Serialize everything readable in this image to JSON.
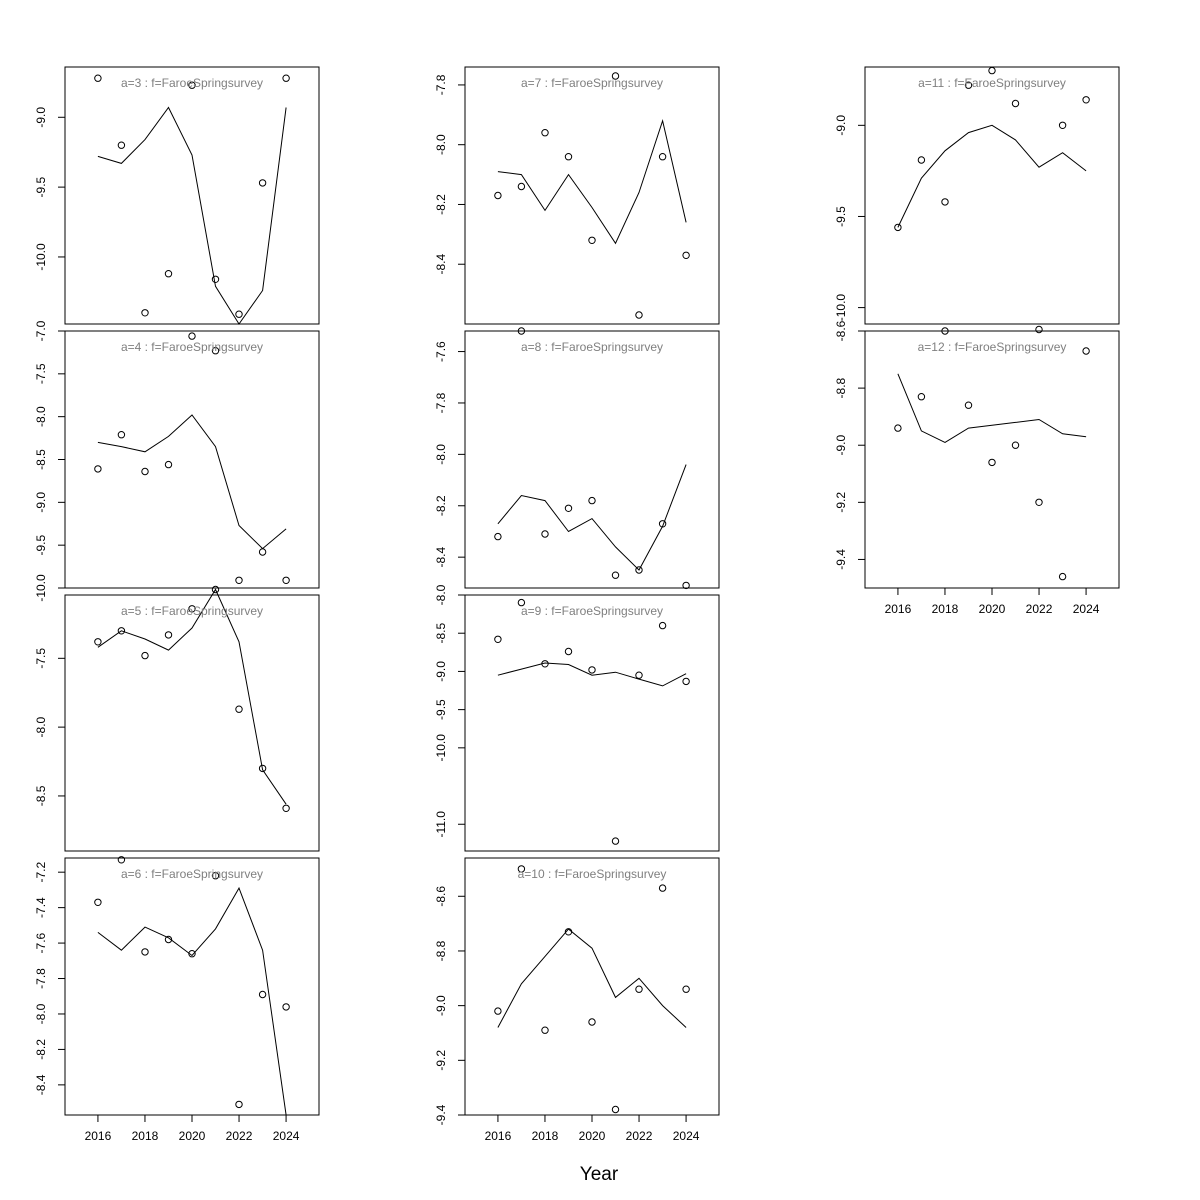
{
  "figure": {
    "xlabel": "Year"
  },
  "chart_data": [
    {
      "type": "scatter",
      "title": "a=3  :  f=FaroeSpringsurvey",
      "xlim": [
        2014.6,
        2025.4
      ],
      "ylim": [
        -10.48,
        -8.64
      ],
      "xticks": [],
      "yticks": [
        -9.0,
        -9.5,
        -10.0
      ],
      "x": [
        2016,
        2017,
        2018,
        2019,
        2020,
        2021,
        2022,
        2023,
        2024
      ],
      "observed": [
        -8.72,
        -9.2,
        -10.4,
        -10.12,
        -8.77,
        -10.16,
        -10.41,
        -9.47,
        -8.72
      ],
      "fitted": [
        -9.28,
        -9.33,
        -9.16,
        -8.93,
        -9.27,
        -10.21,
        -10.48,
        -10.24,
        -8.93
      ]
    },
    {
      "type": "scatter",
      "title": "a=4  :  f=FaroeSpringsurvey",
      "xlim": [
        2014.6,
        2025.4
      ],
      "ylim": [
        -10.0,
        -7.0
      ],
      "xticks": [],
      "yticks": [
        -7.0,
        -7.5,
        -8.0,
        -8.5,
        -9.0,
        -9.5,
        -10.0
      ],
      "x": [
        2016,
        2017,
        2018,
        2019,
        2020,
        2021,
        2022,
        2023,
        2024
      ],
      "observed": [
        -8.61,
        -8.21,
        -8.64,
        -8.56,
        -7.06,
        -7.23,
        -9.91,
        -9.58,
        -9.91
      ],
      "fitted": [
        -8.3,
        -8.35,
        -8.41,
        -8.23,
        -7.98,
        -8.35,
        -9.27,
        -9.54,
        -9.31
      ]
    },
    {
      "type": "scatter",
      "title": "a=5  :  f=FaroeSpringsurvey",
      "xlim": [
        2014.6,
        2025.4
      ],
      "ylim": [
        -8.9,
        -7.04
      ],
      "xticks": [],
      "yticks": [
        -7.5,
        -8.0,
        -8.5
      ],
      "x": [
        2016,
        2017,
        2018,
        2019,
        2020,
        2021,
        2022,
        2023,
        2024
      ],
      "observed": [
        -7.38,
        -7.3,
        -7.48,
        -7.33,
        -7.14,
        -7.0,
        -7.87,
        -8.3,
        -8.59
      ],
      "fitted": [
        -7.42,
        -7.3,
        -7.36,
        -7.44,
        -7.28,
        -7.0,
        -7.38,
        -8.31,
        -8.56
      ]
    },
    {
      "type": "scatter",
      "title": "a=6  :  f=FaroeSpringsurvey",
      "xlim": [
        2014.6,
        2025.4
      ],
      "ylim": [
        -8.57,
        -7.12
      ],
      "xticks": [
        2016,
        2018,
        2020,
        2022,
        2024
      ],
      "yticks": [
        -7.2,
        -7.4,
        -7.6,
        -7.8,
        -8.0,
        -8.2,
        -8.4
      ],
      "x": [
        2016,
        2017,
        2018,
        2019,
        2020,
        2021,
        2022,
        2023,
        2024
      ],
      "observed": [
        -7.37,
        -7.13,
        -7.65,
        -7.58,
        -7.66,
        -7.22,
        -8.51,
        -7.89,
        -7.96
      ],
      "fitted": [
        -7.54,
        -7.64,
        -7.51,
        -7.57,
        -7.67,
        -7.52,
        -7.29,
        -7.64,
        -8.57
      ]
    },
    {
      "type": "scatter",
      "title": "a=7  :  f=FaroeSpringsurvey",
      "xlim": [
        2014.6,
        2025.4
      ],
      "ylim": [
        -8.6,
        -7.74
      ],
      "xticks": [],
      "yticks": [
        -7.8,
        -8.0,
        -8.2,
        -8.4
      ],
      "x": [
        2016,
        2017,
        2018,
        2019,
        2020,
        2021,
        2022,
        2023,
        2024
      ],
      "observed": [
        -8.17,
        -8.14,
        -7.96,
        -8.04,
        -8.32,
        -7.77,
        -8.57,
        -8.04,
        -8.37
      ],
      "fitted": [
        -8.09,
        -8.1,
        -8.22,
        -8.1,
        -8.21,
        -8.33,
        -8.16,
        -7.92,
        -8.26
      ]
    },
    {
      "type": "scatter",
      "title": "a=8  :  f=FaroeSpringsurvey",
      "xlim": [
        2014.6,
        2025.4
      ],
      "ylim": [
        -8.52,
        -7.52
      ],
      "xticks": [],
      "yticks": [
        -7.6,
        -7.8,
        -8.0,
        -8.2,
        -8.4
      ],
      "x": [
        2016,
        2017,
        2018,
        2019,
        2020,
        2021,
        2022,
        2023,
        2024
      ],
      "observed": [
        -8.32,
        -7.52,
        -8.31,
        -8.21,
        -8.18,
        -8.47,
        -8.45,
        -8.27,
        -8.51
      ],
      "fitted": [
        -8.27,
        -8.16,
        -8.18,
        -8.3,
        -8.25,
        -8.36,
        -8.45,
        -8.28,
        -8.04
      ]
    },
    {
      "type": "scatter",
      "title": "a=9  :  f=FaroeSpringsurvey",
      "xlim": [
        2014.6,
        2025.4
      ],
      "ylim": [
        -11.35,
        -8.0
      ],
      "xticks": [],
      "yticks": [
        -8.0,
        -8.5,
        -9.0,
        -9.5,
        -10.0,
        -11.0
      ],
      "x": [
        2016,
        2017,
        2018,
        2019,
        2020,
        2021,
        2022,
        2023,
        2024
      ],
      "observed": [
        -8.58,
        -8.1,
        -8.9,
        -8.74,
        -8.98,
        -11.22,
        -9.05,
        -8.4,
        -9.13
      ],
      "fitted": [
        -9.05,
        -8.97,
        -8.89,
        -8.91,
        -9.05,
        -9.01,
        -9.1,
        -9.19,
        -9.03
      ]
    },
    {
      "type": "scatter",
      "title": "a=10  :  f=FaroeSpringsurvey",
      "xlim": [
        2014.6,
        2025.4
      ],
      "ylim": [
        -9.4,
        -8.46
      ],
      "xticks": [
        2016,
        2018,
        2020,
        2022,
        2024
      ],
      "yticks": [
        -8.6,
        -8.8,
        -9.0,
        -9.2,
        -9.4
      ],
      "x": [
        2016,
        2017,
        2018,
        2019,
        2020,
        2021,
        2022,
        2023,
        2024
      ],
      "observed": [
        -9.02,
        -8.5,
        -9.09,
        -8.73,
        -9.06,
        -9.38,
        -8.94,
        -8.57,
        -8.94
      ],
      "fitted": [
        -9.08,
        -8.92,
        -8.82,
        -8.72,
        -8.79,
        -8.97,
        -8.9,
        -9.0,
        -9.08
      ]
    },
    {
      "type": "scatter",
      "title": "a=11  :  f=FaroeSpringsurvey",
      "xlim": [
        2014.6,
        2025.4
      ],
      "ylim": [
        -10.09,
        -8.68
      ],
      "xticks": [],
      "yticks": [
        -9.0,
        -9.5,
        -10.0
      ],
      "x": [
        2016,
        2017,
        2018,
        2019,
        2020,
        2021,
        2022,
        2023,
        2024
      ],
      "observed": [
        -9.56,
        -9.19,
        -9.42,
        -8.78,
        -8.7,
        -8.88,
        -10.12,
        -9.0,
        -8.86
      ],
      "fitted": [
        -9.56,
        -9.29,
        -9.14,
        -9.04,
        -9.0,
        -9.08,
        -9.23,
        -9.15,
        -9.25
      ]
    },
    {
      "type": "scatter",
      "title": "a=12  :  f=FaroeSpringsurvey",
      "xlim": [
        2014.6,
        2025.4
      ],
      "ylim": [
        -9.5,
        -8.6
      ],
      "xticks": [
        2016,
        2018,
        2020,
        2022,
        2024
      ],
      "yticks": [
        -8.6,
        -8.8,
        -9.0,
        -9.2,
        -9.4
      ],
      "x": [
        2016,
        2017,
        2018,
        2019,
        2020,
        2021,
        2022,
        2023,
        2024
      ],
      "observed": [
        -8.94,
        -8.83,
        -8.6,
        -8.86,
        -9.06,
        -9.0,
        -9.2,
        -9.46,
        -8.67
      ],
      "fitted": [
        -8.75,
        -8.95,
        -8.99,
        -8.94,
        -8.93,
        -8.92,
        -8.91,
        -8.96,
        -8.97
      ]
    }
  ]
}
